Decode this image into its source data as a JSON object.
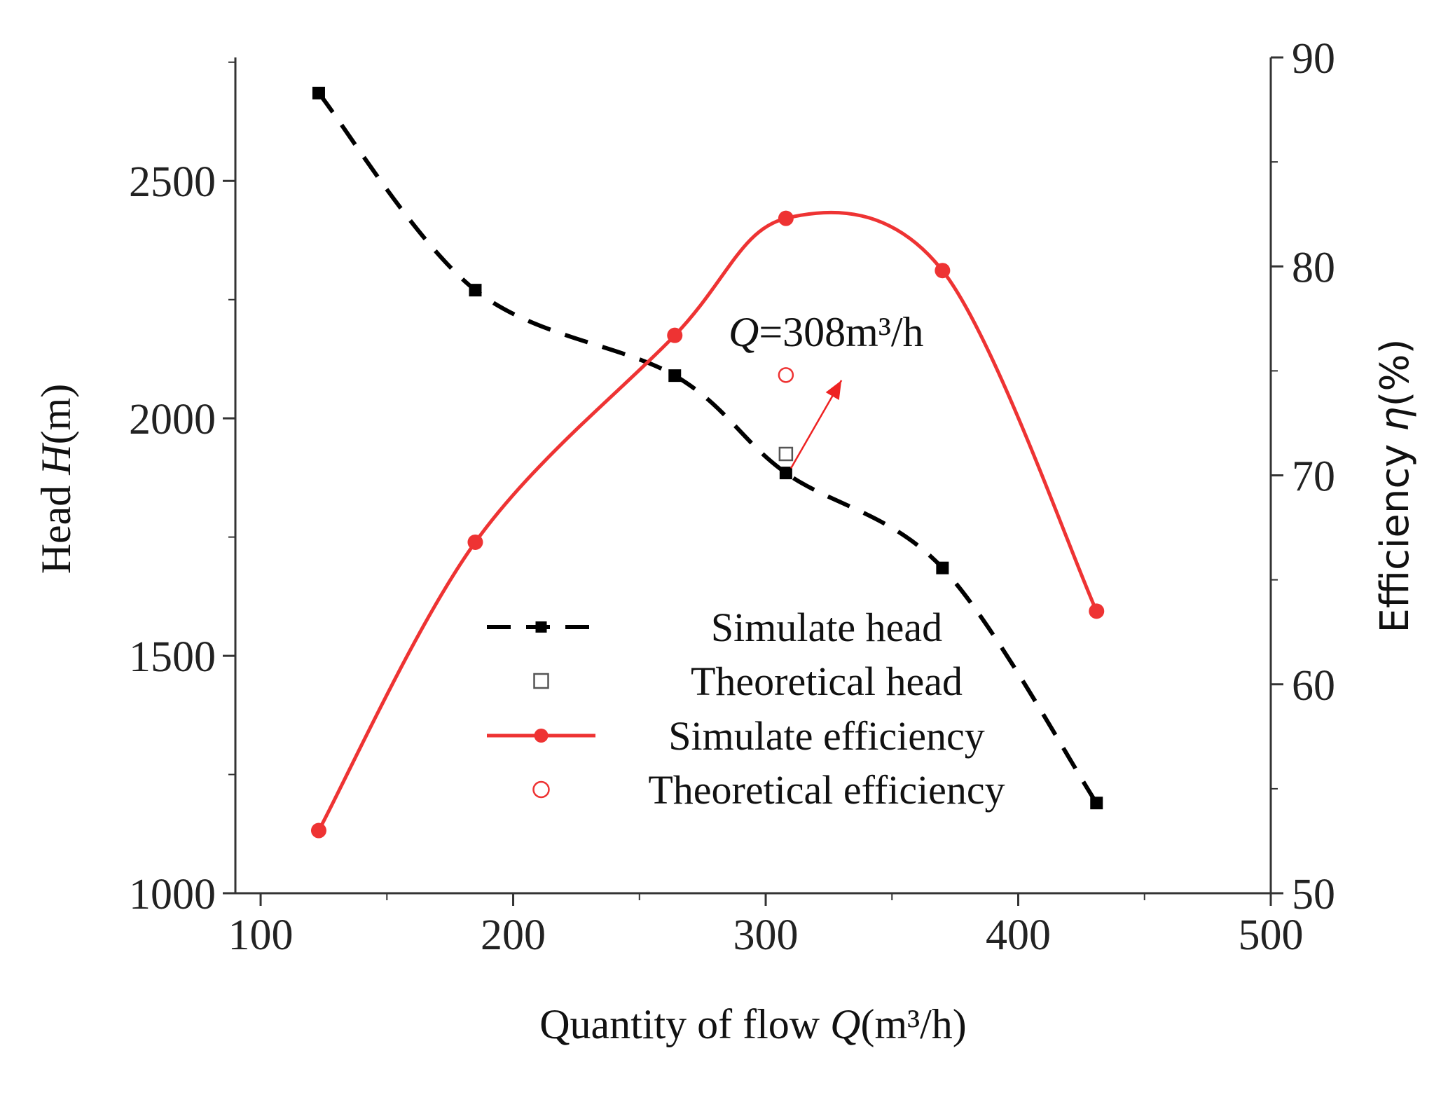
{
  "chart_data": {
    "type": "line",
    "xlabel": {
      "prefix": "Quantity of flow ",
      "var": "Q",
      "unit": "(m³/h)"
    },
    "ylabel_left": {
      "prefix": "Head ",
      "var": "H",
      "unit": "(m)"
    },
    "ylabel_right": {
      "prefix": "Efficiency ",
      "var": "η",
      "unit": "(%)"
    },
    "xlim": [
      90,
      500
    ],
    "ylim_left": [
      1000,
      2760
    ],
    "ylim_right": [
      50,
      90
    ],
    "x_ticks": [
      100,
      200,
      300,
      400,
      500
    ],
    "y_left_ticks": [
      1000,
      1500,
      2000,
      2500
    ],
    "y_right_ticks": [
      50,
      60,
      70,
      80,
      90
    ],
    "series": [
      {
        "name": "Simulate head",
        "axis": "left",
        "style": "dashed",
        "marker": "filled-square",
        "color": "#000000",
        "x": [
          123,
          185,
          264,
          308,
          370,
          431
        ],
        "y": [
          2685,
          2270,
          2090,
          1885,
          1685,
          1190
        ]
      },
      {
        "name": "Theoretical head",
        "axis": "left",
        "style": "none",
        "marker": "open-square",
        "color": "#555555",
        "x": [
          308
        ],
        "y": [
          1925
        ]
      },
      {
        "name": "Simulate efficiency",
        "axis": "right",
        "style": "solid",
        "marker": "filled-circle",
        "color": "#ee3333",
        "x": [
          123,
          185,
          264,
          308,
          370,
          431
        ],
        "y": [
          53.0,
          66.8,
          76.7,
          82.3,
          79.8,
          63.5
        ]
      },
      {
        "name": "Theoretical efficiency",
        "axis": "right",
        "style": "none",
        "marker": "open-circle",
        "color": "#ee3333",
        "x": [
          308
        ],
        "y": [
          74.8
        ]
      }
    ],
    "annotation": {
      "var": "Q",
      "text": "=308m³/h",
      "arrow_from": {
        "x": 310,
        "y_left": 1895
      },
      "arrow_to": {
        "x": 330,
        "y_left": 2080
      }
    },
    "legend_position": "bottom-center"
  }
}
